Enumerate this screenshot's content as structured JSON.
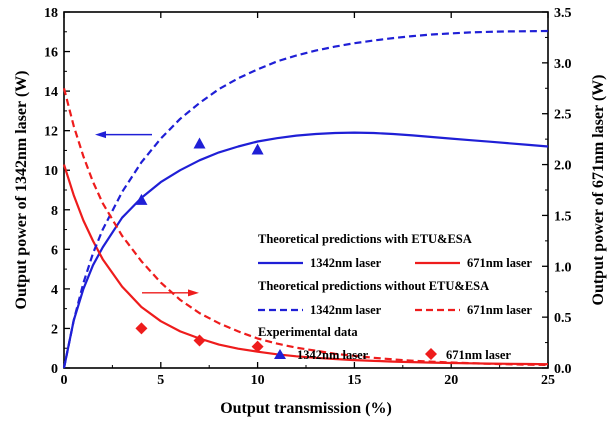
{
  "chart_data": {
    "type": "line",
    "xlabel": "Output transmission (%)",
    "ylabel_left": "Output power of 1342nm laser  (W)",
    "ylabel_right": "Output power of 671nm laser  (W)",
    "xlim": [
      0,
      25
    ],
    "ylim_left": [
      0,
      18
    ],
    "ylim_right": [
      0,
      3.5
    ],
    "xticks": [
      0,
      5,
      10,
      15,
      20,
      25
    ],
    "yticks_left": [
      0,
      2,
      4,
      6,
      8,
      10,
      12,
      14,
      16,
      18
    ],
    "yticks_right": [
      0.0,
      0.5,
      1.0,
      1.5,
      2.0,
      2.5,
      3.0,
      3.5
    ],
    "grid": false,
    "colors": {
      "blue": "#1f1fd6",
      "red": "#ee1c1c"
    },
    "legend": {
      "group1_title": "Theoretical predictions with ETU&ESA",
      "group2_title": "Theoretical predictions without ETU&ESA",
      "group3_title": "Experimental data",
      "label_1342": "1342nm laser",
      "label_671": "671nm laser"
    },
    "series": [
      {
        "group": "with_etu_esa",
        "axis": "left",
        "color": "#1f1fd6",
        "style": "solid",
        "x": [
          0,
          0.5,
          1,
          1.5,
          2,
          3,
          4,
          5,
          6,
          7,
          8,
          9,
          10,
          11,
          12,
          13,
          14,
          15,
          16,
          17,
          18,
          19,
          20,
          21,
          22,
          23,
          24,
          25
        ],
        "y": [
          0,
          2.4,
          4.0,
          5.2,
          6.1,
          7.6,
          8.6,
          9.4,
          10.0,
          10.5,
          10.9,
          11.2,
          11.45,
          11.62,
          11.75,
          11.83,
          11.88,
          11.9,
          11.88,
          11.83,
          11.76,
          11.68,
          11.6,
          11.52,
          11.44,
          11.36,
          11.28,
          11.2
        ]
      },
      {
        "group": "with_etu_esa",
        "axis": "right",
        "color": "#ee1c1c",
        "style": "solid",
        "x": [
          0,
          0.5,
          1,
          1.5,
          2,
          3,
          4,
          5,
          6,
          7,
          8,
          9,
          10,
          11,
          12,
          13,
          14,
          15,
          16,
          17,
          18,
          19,
          20,
          21,
          22,
          23,
          24,
          25
        ],
        "y": [
          2.0,
          1.7,
          1.45,
          1.25,
          1.07,
          0.8,
          0.6,
          0.46,
          0.36,
          0.29,
          0.23,
          0.19,
          0.16,
          0.135,
          0.115,
          0.1,
          0.088,
          0.078,
          0.07,
          0.063,
          0.058,
          0.053,
          0.049,
          0.046,
          0.043,
          0.041,
          0.039,
          0.037
        ]
      },
      {
        "group": "without_etu_esa",
        "axis": "left",
        "color": "#1f1fd6",
        "style": "dashed",
        "x": [
          0,
          0.5,
          1,
          1.5,
          2,
          3,
          4,
          5,
          6,
          7,
          8,
          9,
          10,
          11,
          12,
          13,
          14,
          15,
          16,
          17,
          18,
          19,
          20,
          21,
          22,
          23,
          24,
          25
        ],
        "y": [
          0,
          2.4,
          4.3,
          5.8,
          7.0,
          8.9,
          10.4,
          11.6,
          12.6,
          13.4,
          14.1,
          14.65,
          15.1,
          15.5,
          15.8,
          16.05,
          16.25,
          16.42,
          16.56,
          16.68,
          16.78,
          16.86,
          16.92,
          16.97,
          17.0,
          17.02,
          17.03,
          17.04
        ]
      },
      {
        "group": "without_etu_esa",
        "axis": "right",
        "color": "#ee1c1c",
        "style": "dashed",
        "x": [
          0,
          0.5,
          1,
          1.5,
          2,
          3,
          4,
          5,
          6,
          7,
          8,
          9,
          10,
          11,
          12,
          13,
          14,
          15,
          16,
          17,
          18,
          19,
          20,
          21,
          22,
          23,
          24,
          25
        ],
        "y": [
          2.75,
          2.38,
          2.08,
          1.83,
          1.62,
          1.3,
          1.05,
          0.84,
          0.67,
          0.54,
          0.44,
          0.36,
          0.29,
          0.24,
          0.2,
          0.17,
          0.14,
          0.12,
          0.1,
          0.085,
          0.072,
          0.062,
          0.054,
          0.047,
          0.041,
          0.036,
          0.032,
          0.03
        ]
      },
      {
        "group": "experimental",
        "axis": "left",
        "color": "#1f1fd6",
        "marker": "triangle",
        "x": [
          4,
          7,
          10
        ],
        "y": [
          8.5,
          11.35,
          11.05
        ]
      },
      {
        "group": "experimental",
        "axis": "right",
        "color": "#ee1c1c",
        "marker": "diamond",
        "x": [
          4,
          7,
          10
        ],
        "y": [
          0.39,
          0.27,
          0.21
        ]
      }
    ]
  }
}
